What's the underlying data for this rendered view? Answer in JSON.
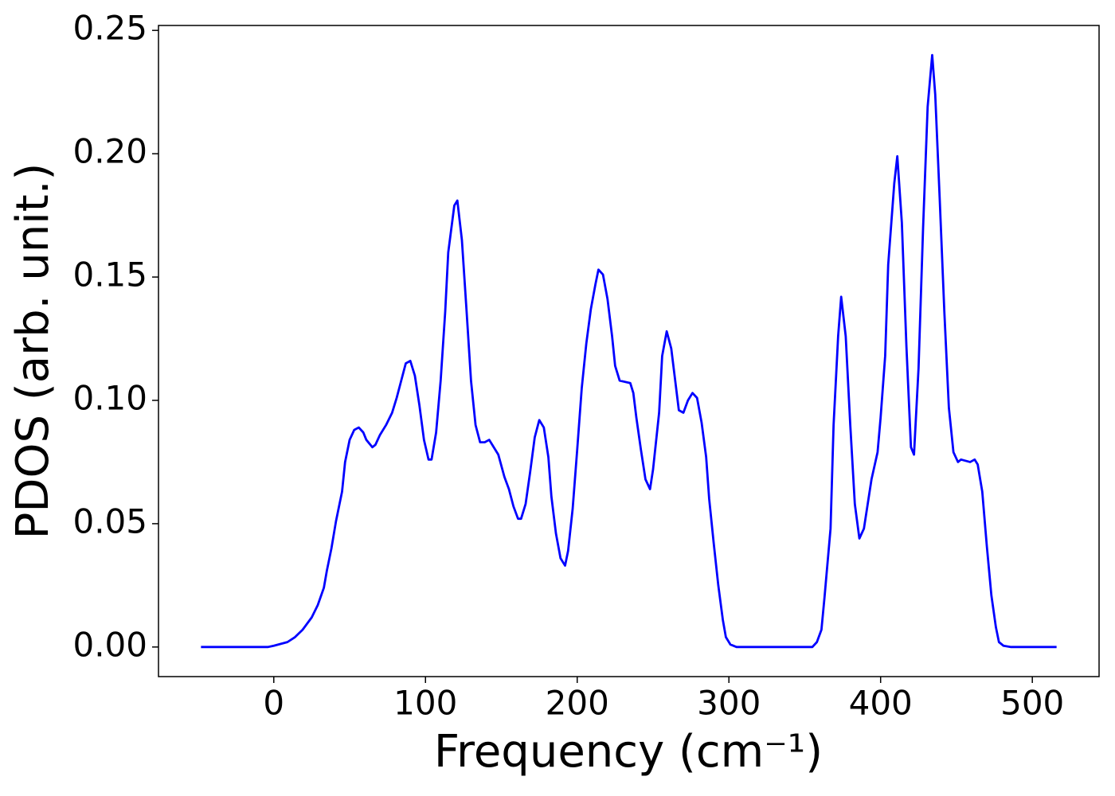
{
  "chart_data": {
    "type": "line",
    "x_label": "Frequency (cm⁻¹)",
    "y_label": "PDOS (arb. unit.)",
    "xlim": [
      -76,
      544
    ],
    "ylim": [
      -0.012,
      0.252
    ],
    "xticks": [
      0,
      100,
      200,
      300,
      400,
      500
    ],
    "yticks": [
      {
        "value": 0,
        "label": "0.00"
      },
      0.05,
      {
        "value": 0.1,
        "label": "0.10"
      },
      0.15,
      {
        "value": 0.2,
        "label": "0.20"
      },
      0.25
    ],
    "grid": false,
    "series": [
      {
        "name": "PDOS",
        "color": "#0000ff",
        "x": [
          -48,
          -4,
          0,
          9,
          14,
          19,
          25,
          29,
          33,
          35,
          38,
          41,
          45,
          47,
          50,
          53,
          56,
          59,
          61,
          65,
          67,
          70,
          74,
          78,
          81,
          84,
          87,
          90,
          93,
          96,
          99,
          102,
          104,
          107,
          110,
          113,
          115,
          119,
          121,
          124,
          127,
          130,
          133,
          136,
          139,
          142,
          144,
          148,
          152,
          155,
          158,
          161,
          163,
          166,
          169,
          172,
          175,
          178,
          181,
          183,
          186,
          189,
          192,
          194,
          197,
          200,
          203,
          206,
          209,
          212,
          214,
          217,
          220,
          223,
          225,
          228,
          235,
          237,
          239,
          242,
          245,
          248,
          250,
          254,
          256,
          259,
          262,
          265,
          267,
          270,
          273,
          276,
          279,
          282,
          285,
          287,
          290,
          293,
          296,
          298,
          301,
          305,
          355,
          358,
          361,
          363,
          367,
          369,
          372,
          374,
          377,
          380,
          383,
          386,
          389,
          394,
          398,
          400,
          403,
          405,
          409,
          411,
          414,
          417,
          420,
          422,
          425,
          428,
          431,
          434,
          436,
          439,
          442,
          445,
          448,
          451,
          453,
          459,
          462,
          464,
          467,
          470,
          473,
          476,
          478,
          481,
          486,
          516
        ],
        "values": [
          0,
          0,
          0.0005,
          0.002,
          0.004,
          0.007,
          0.012,
          0.017,
          0.024,
          0.031,
          0.04,
          0.051,
          0.063,
          0.075,
          0.084,
          0.088,
          0.089,
          0.087,
          0.084,
          0.081,
          0.082,
          0.086,
          0.09,
          0.095,
          0.101,
          0.108,
          0.115,
          0.116,
          0.11,
          0.098,
          0.084,
          0.076,
          0.076,
          0.087,
          0.108,
          0.136,
          0.16,
          0.179,
          0.181,
          0.165,
          0.137,
          0.108,
          0.09,
          0.083,
          0.083,
          0.084,
          0.082,
          0.078,
          0.069,
          0.064,
          0.057,
          0.052,
          0.052,
          0.058,
          0.071,
          0.085,
          0.092,
          0.089,
          0.077,
          0.061,
          0.046,
          0.036,
          0.033,
          0.039,
          0.056,
          0.08,
          0.105,
          0.123,
          0.137,
          0.147,
          0.153,
          0.151,
          0.141,
          0.126,
          0.114,
          0.108,
          0.107,
          0.103,
          0.093,
          0.08,
          0.068,
          0.064,
          0.072,
          0.095,
          0.118,
          0.128,
          0.121,
          0.106,
          0.096,
          0.095,
          0.1,
          0.103,
          0.101,
          0.091,
          0.077,
          0.06,
          0.042,
          0.025,
          0.011,
          0.004,
          0.001,
          0,
          0,
          0.002,
          0.007,
          0.02,
          0.048,
          0.09,
          0.126,
          0.142,
          0.126,
          0.09,
          0.058,
          0.044,
          0.048,
          0.068,
          0.079,
          0.093,
          0.118,
          0.155,
          0.188,
          0.199,
          0.172,
          0.122,
          0.081,
          0.078,
          0.113,
          0.17,
          0.219,
          0.24,
          0.224,
          0.181,
          0.136,
          0.097,
          0.079,
          0.075,
          0.076,
          0.075,
          0.076,
          0.074,
          0.063,
          0.041,
          0.021,
          0.008,
          0.002,
          0.0005,
          0,
          0
        ]
      }
    ]
  }
}
